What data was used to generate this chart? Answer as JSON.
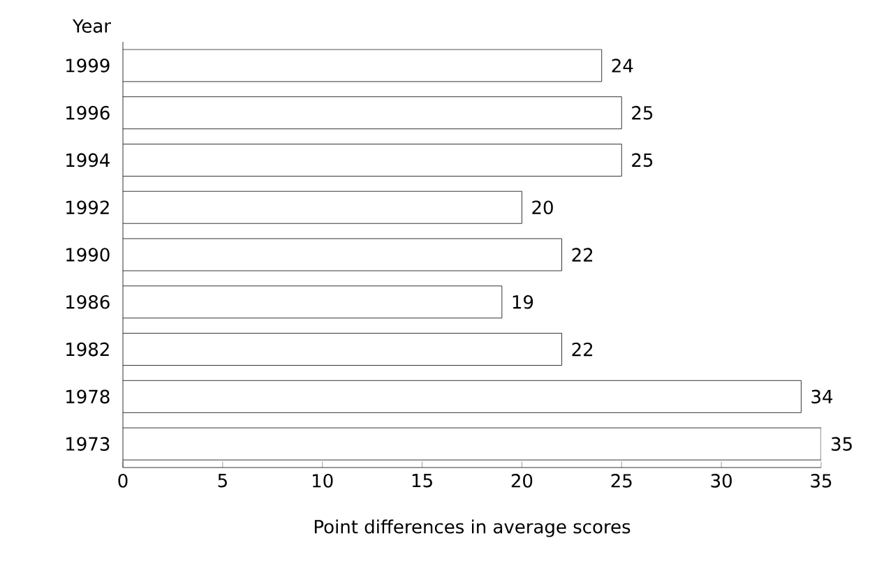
{
  "chart_data": {
    "type": "bar",
    "orientation": "horizontal",
    "xlabel": "Point differences in average scores",
    "ylabel": "Year",
    "categories": [
      "1999",
      "1996",
      "1994",
      "1992",
      "1990",
      "1986",
      "1982",
      "1978",
      "1973"
    ],
    "values": [
      24,
      25,
      25,
      20,
      22,
      19,
      22,
      34,
      35
    ],
    "color": "#ffffff",
    "xlim": [
      0,
      35
    ],
    "xticks": [
      0,
      5,
      10,
      15,
      20,
      25,
      30,
      35
    ],
    "data_labels": true
  }
}
